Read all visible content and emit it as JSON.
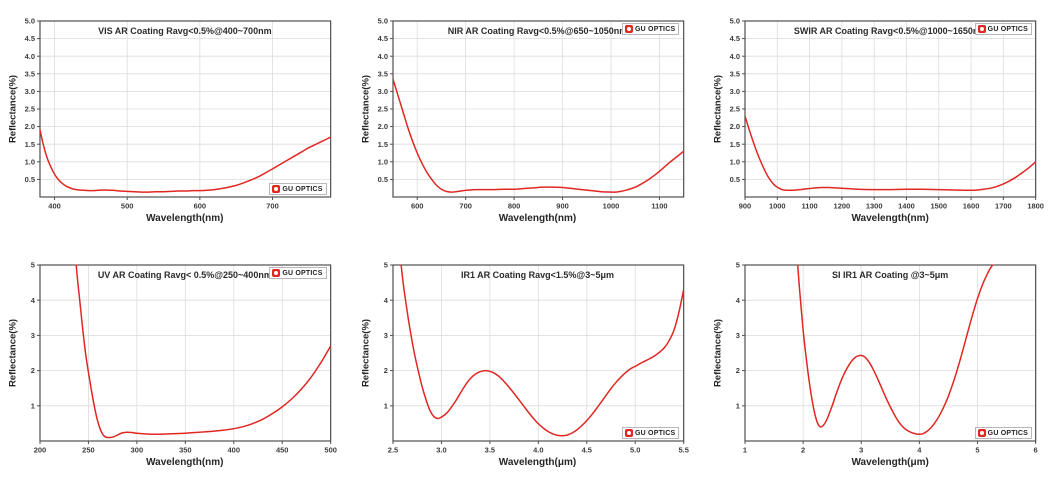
{
  "brand": {
    "logo_text": "GU OPTICS",
    "logo_accent": "#e02722"
  },
  "chart_data": [
    {
      "name": "vis-ar-coating",
      "type": "line",
      "title": "VIS AR Coating Ravg<0.5%@400~700nm",
      "xlabel": "Wavelength(nm)",
      "ylabel": "Reflectance(%)",
      "xlim": [
        380,
        780
      ],
      "ylim": [
        0,
        5
      ],
      "grid": true,
      "line_color": "#e02722",
      "logo_position": "bottom-right",
      "x_tick_values": [
        400,
        500,
        600,
        700
      ],
      "x_tick_labels": [
        "400",
        "500",
        "600",
        "700"
      ],
      "y_tick_values": [
        0.5,
        1.0,
        1.5,
        2.0,
        2.5,
        3.0,
        3.5,
        4.0,
        4.5,
        5.0
      ],
      "y_tick_labels": [
        "0.5",
        "1.0",
        "1.5",
        "2.0",
        "2.5",
        "3.0",
        "3.5",
        "4.0",
        "4.5",
        "5.0"
      ],
      "series": [
        {
          "name": "reflectance",
          "x": [
            380,
            385,
            390,
            395,
            400,
            405,
            410,
            415,
            420,
            425,
            430,
            440,
            450,
            460,
            470,
            480,
            490,
            500,
            510,
            520,
            530,
            540,
            550,
            560,
            570,
            580,
            590,
            600,
            610,
            620,
            630,
            640,
            650,
            660,
            670,
            680,
            690,
            700,
            710,
            720,
            730,
            740,
            750,
            760,
            770,
            780
          ],
          "y": [
            1.9,
            1.45,
            1.1,
            0.85,
            0.65,
            0.5,
            0.4,
            0.32,
            0.27,
            0.23,
            0.21,
            0.19,
            0.18,
            0.19,
            0.2,
            0.19,
            0.17,
            0.16,
            0.15,
            0.14,
            0.14,
            0.15,
            0.15,
            0.16,
            0.17,
            0.17,
            0.18,
            0.18,
            0.19,
            0.21,
            0.24,
            0.28,
            0.33,
            0.4,
            0.48,
            0.57,
            0.68,
            0.8,
            0.92,
            1.04,
            1.16,
            1.28,
            1.4,
            1.5,
            1.6,
            1.7
          ]
        }
      ]
    },
    {
      "name": "nir-ar-coating",
      "type": "line",
      "title": "NIR AR Coating Ravg<0.5%@650~1050nm",
      "xlabel": "Wavelength(nm)",
      "ylabel": "Reflectance(%)",
      "xlim": [
        550,
        1150
      ],
      "ylim": [
        0,
        5
      ],
      "grid": true,
      "line_color": "#e02722",
      "logo_position": "top-right",
      "x_tick_values": [
        600,
        700,
        800,
        900,
        1000,
        1100
      ],
      "x_tick_labels": [
        "600",
        "700",
        "800",
        "900",
        "1000",
        "1100"
      ],
      "y_tick_values": [
        0.5,
        1.0,
        1.5,
        2.0,
        2.5,
        3.0,
        3.5,
        4.0,
        4.5,
        5.0
      ],
      "y_tick_labels": [
        "0.5",
        "1.0",
        "1.5",
        "2.0",
        "2.5",
        "3.0",
        "3.5",
        "4.0",
        "4.5",
        "5.0"
      ],
      "series": [
        {
          "name": "reflectance",
          "x": [
            550,
            560,
            570,
            580,
            590,
            600,
            610,
            620,
            630,
            640,
            650,
            660,
            670,
            680,
            690,
            700,
            720,
            740,
            760,
            780,
            800,
            820,
            840,
            860,
            880,
            900,
            920,
            940,
            960,
            980,
            1000,
            1010,
            1020,
            1030,
            1040,
            1050,
            1060,
            1070,
            1080,
            1090,
            1100,
            1110,
            1120,
            1130,
            1140,
            1150
          ],
          "y": [
            3.35,
            2.9,
            2.45,
            2.0,
            1.6,
            1.25,
            0.95,
            0.7,
            0.5,
            0.33,
            0.22,
            0.16,
            0.14,
            0.15,
            0.17,
            0.19,
            0.21,
            0.21,
            0.21,
            0.22,
            0.22,
            0.24,
            0.26,
            0.28,
            0.28,
            0.27,
            0.24,
            0.21,
            0.18,
            0.15,
            0.14,
            0.14,
            0.16,
            0.19,
            0.23,
            0.28,
            0.35,
            0.43,
            0.52,
            0.62,
            0.73,
            0.85,
            0.97,
            1.08,
            1.19,
            1.3
          ]
        }
      ]
    },
    {
      "name": "swir-ar-coating",
      "type": "line",
      "title": "SWIR AR Coating Ravg<0.5%@1000~1650nm",
      "xlabel": "Wavelength(nm)",
      "ylabel": "Reflectance(%)",
      "xlim": [
        900,
        1800
      ],
      "ylim": [
        0,
        5
      ],
      "grid": true,
      "line_color": "#e02722",
      "logo_position": "top-right",
      "x_tick_values": [
        900,
        1000,
        1100,
        1200,
        1300,
        1400,
        1500,
        1600,
        1700,
        1800
      ],
      "x_tick_labels": [
        "900",
        "1000",
        "1100",
        "1200",
        "1300",
        "1400",
        "1500",
        "1600",
        "1700",
        "1800"
      ],
      "y_tick_values": [
        0.5,
        1.0,
        1.5,
        2.0,
        2.5,
        3.0,
        3.5,
        4.0,
        4.5,
        5.0
      ],
      "y_tick_labels": [
        "0.5",
        "1.0",
        "1.5",
        "2.0",
        "2.5",
        "3.0",
        "3.5",
        "4.0",
        "4.5",
        "5.0"
      ],
      "series": [
        {
          "name": "reflectance",
          "x": [
            900,
            910,
            920,
            930,
            940,
            950,
            960,
            970,
            980,
            990,
            1000,
            1010,
            1020,
            1040,
            1060,
            1080,
            1100,
            1120,
            1140,
            1160,
            1180,
            1200,
            1250,
            1300,
            1350,
            1400,
            1450,
            1500,
            1550,
            1600,
            1620,
            1640,
            1660,
            1680,
            1700,
            1720,
            1740,
            1760,
            1780,
            1800
          ],
          "y": [
            2.3,
            2.0,
            1.72,
            1.45,
            1.2,
            0.98,
            0.78,
            0.6,
            0.46,
            0.35,
            0.28,
            0.23,
            0.2,
            0.19,
            0.2,
            0.22,
            0.24,
            0.26,
            0.27,
            0.27,
            0.26,
            0.25,
            0.22,
            0.21,
            0.21,
            0.22,
            0.22,
            0.21,
            0.2,
            0.19,
            0.2,
            0.22,
            0.25,
            0.3,
            0.37,
            0.46,
            0.57,
            0.7,
            0.84,
            1.0
          ]
        }
      ]
    },
    {
      "name": "uv-ar-coating",
      "type": "line",
      "title": "UV AR Coating Ravg< 0.5%@250~400nm",
      "xlabel": "Wavelength(nm)",
      "ylabel": "Reflectance(%)",
      "xlim": [
        200,
        500
      ],
      "ylim": [
        0,
        5
      ],
      "grid": true,
      "line_color": "#e02722",
      "logo_position": "top-right",
      "x_tick_values": [
        200,
        250,
        300,
        350,
        400,
        450,
        500
      ],
      "x_tick_labels": [
        "200",
        "250",
        "300",
        "350",
        "400",
        "450",
        "500"
      ],
      "y_tick_values": [
        1,
        2,
        3,
        4,
        5
      ],
      "y_tick_labels": [
        "1",
        "2",
        "3",
        "4",
        "5"
      ],
      "series": [
        {
          "name": "reflectance",
          "x": [
            235,
            238,
            241,
            244,
            247,
            250,
            253,
            256,
            259,
            262,
            265,
            268,
            272,
            276,
            280,
            285,
            290,
            295,
            300,
            310,
            320,
            330,
            340,
            350,
            360,
            370,
            380,
            390,
            400,
            410,
            420,
            430,
            440,
            450,
            460,
            470,
            480,
            490,
            500
          ],
          "y": [
            5.9,
            4.8,
            4.0,
            3.2,
            2.5,
            1.95,
            1.45,
            1.0,
            0.62,
            0.35,
            0.18,
            0.11,
            0.1,
            0.12,
            0.17,
            0.23,
            0.25,
            0.24,
            0.22,
            0.2,
            0.19,
            0.2,
            0.21,
            0.22,
            0.24,
            0.26,
            0.28,
            0.31,
            0.35,
            0.41,
            0.5,
            0.62,
            0.78,
            0.97,
            1.2,
            1.48,
            1.82,
            2.23,
            2.7
          ]
        }
      ]
    },
    {
      "name": "ir1-ar-coating",
      "type": "line",
      "title": "IR1 AR Coating Ravg<1.5%@3~5μm",
      "xlabel": "Wavelength(μm)",
      "ylabel": "Reflectance(%)",
      "xlim": [
        2.5,
        5.5
      ],
      "ylim": [
        0,
        5
      ],
      "grid": true,
      "line_color": "#e02722",
      "logo_position": "bottom-right",
      "x_tick_values": [
        2.5,
        3.0,
        3.5,
        4.0,
        4.5,
        5.0,
        5.5
      ],
      "x_tick_labels": [
        "2.5",
        "3.0",
        "3.5",
        "4.0",
        "4.5",
        "5.0",
        "5.5"
      ],
      "y_tick_values": [
        1,
        2,
        3,
        4,
        5
      ],
      "y_tick_labels": [
        "1",
        "2",
        "3",
        "4",
        "5"
      ],
      "series": [
        {
          "name": "reflectance",
          "x": [
            2.55,
            2.6,
            2.64,
            2.68,
            2.72,
            2.76,
            2.8,
            2.84,
            2.88,
            2.92,
            2.96,
            3.0,
            3.05,
            3.1,
            3.15,
            3.2,
            3.25,
            3.3,
            3.35,
            3.4,
            3.45,
            3.5,
            3.55,
            3.6,
            3.65,
            3.7,
            3.75,
            3.8,
            3.85,
            3.9,
            3.95,
            4.0,
            4.05,
            4.1,
            4.15,
            4.2,
            4.25,
            4.3,
            4.35,
            4.4,
            4.45,
            4.5,
            4.55,
            4.6,
            4.65,
            4.7,
            4.75,
            4.8,
            4.85,
            4.9,
            4.95,
            5.0,
            5.05,
            5.1,
            5.15,
            5.2,
            5.25,
            5.3,
            5.35,
            5.4,
            5.45,
            5.5
          ],
          "y": [
            5.9,
            4.6,
            3.8,
            3.1,
            2.5,
            2.0,
            1.55,
            1.18,
            0.88,
            0.7,
            0.64,
            0.68,
            0.78,
            0.95,
            1.15,
            1.38,
            1.6,
            1.78,
            1.9,
            1.97,
            2.0,
            1.98,
            1.92,
            1.82,
            1.68,
            1.52,
            1.35,
            1.17,
            0.99,
            0.81,
            0.64,
            0.49,
            0.37,
            0.27,
            0.2,
            0.16,
            0.15,
            0.17,
            0.23,
            0.32,
            0.44,
            0.58,
            0.74,
            0.92,
            1.11,
            1.3,
            1.49,
            1.66,
            1.81,
            1.94,
            2.05,
            2.12,
            2.2,
            2.27,
            2.34,
            2.42,
            2.52,
            2.65,
            2.85,
            3.15,
            3.65,
            4.3
          ]
        }
      ]
    },
    {
      "name": "si-ir1-ar-coating",
      "type": "line",
      "title": "SI IR1 AR Coating @3~5μm",
      "xlabel": "Wavelength(μm)",
      "ylabel": "Reflectance(%)",
      "xlim": [
        1,
        6
      ],
      "ylim": [
        0,
        5
      ],
      "grid": true,
      "line_color": "#e02722",
      "logo_position": "bottom-right",
      "x_tick_values": [
        1,
        2,
        3,
        4,
        5,
        6
      ],
      "x_tick_labels": [
        "1",
        "2",
        "3",
        "4",
        "5",
        "6"
      ],
      "y_tick_values": [
        1,
        2,
        3,
        4,
        5
      ],
      "y_tick_labels": [
        "1",
        "2",
        "3",
        "4",
        "5"
      ],
      "series": [
        {
          "name": "reflectance",
          "x": [
            1.87,
            1.92,
            1.96,
            2.0,
            2.05,
            2.1,
            2.15,
            2.2,
            2.25,
            2.3,
            2.35,
            2.4,
            2.45,
            2.5,
            2.55,
            2.6,
            2.65,
            2.7,
            2.75,
            2.8,
            2.85,
            2.9,
            2.95,
            3.0,
            3.05,
            3.1,
            3.15,
            3.2,
            3.25,
            3.3,
            3.35,
            3.4,
            3.45,
            3.5,
            3.55,
            3.6,
            3.65,
            3.7,
            3.75,
            3.8,
            3.85,
            3.9,
            3.95,
            4.0,
            4.05,
            4.1,
            4.15,
            4.2,
            4.25,
            4.3,
            4.35,
            4.4,
            4.45,
            4.5,
            4.6,
            4.7,
            4.8,
            4.9,
            5.0,
            5.1,
            5.2,
            5.3,
            5.4
          ],
          "y": [
            5.9,
            4.7,
            3.9,
            3.15,
            2.4,
            1.75,
            1.2,
            0.78,
            0.5,
            0.4,
            0.45,
            0.58,
            0.78,
            1.0,
            1.25,
            1.48,
            1.7,
            1.89,
            2.05,
            2.19,
            2.3,
            2.38,
            2.42,
            2.43,
            2.4,
            2.32,
            2.2,
            2.05,
            1.88,
            1.7,
            1.51,
            1.32,
            1.14,
            0.97,
            0.81,
            0.66,
            0.53,
            0.43,
            0.35,
            0.29,
            0.25,
            0.22,
            0.2,
            0.19,
            0.2,
            0.24,
            0.3,
            0.38,
            0.48,
            0.6,
            0.74,
            0.9,
            1.08,
            1.28,
            1.75,
            2.3,
            2.9,
            3.5,
            4.05,
            4.5,
            4.85,
            5.15,
            5.9
          ]
        }
      ]
    }
  ]
}
